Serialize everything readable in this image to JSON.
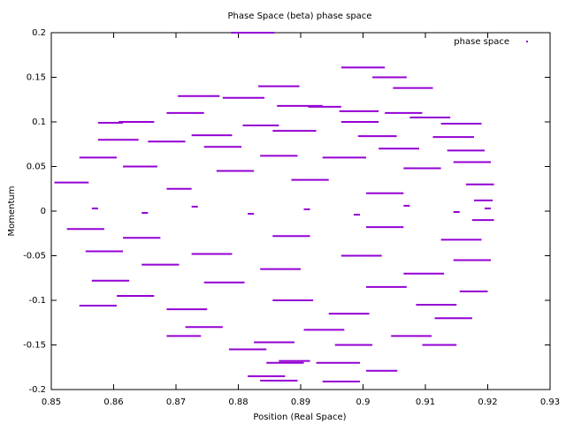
{
  "chart_data": {
    "type": "segments",
    "title": "Phase Space (beta) phase space",
    "x_label": "Position (Real Space)",
    "y_label": "Momentum",
    "xlim": [
      0.85,
      0.93
    ],
    "xticks": [
      0.85,
      0.86,
      0.87,
      0.88,
      0.89,
      0.9,
      0.91,
      0.92,
      0.93
    ],
    "ylim": [
      -0.2,
      0.2
    ],
    "yticks": [
      -0.2,
      -0.15,
      -0.1,
      -0.05,
      0,
      0.05,
      0.1,
      0.15,
      0.2
    ],
    "legend": "top-right",
    "series": [
      {
        "name": "phase space",
        "color": "#9400d3",
        "x": [
          0.8788,
          0.8965,
          0.9015,
          0.8832,
          0.9048,
          0.8703,
          0.8775,
          0.8862,
          0.8912,
          0.8962,
          0.9035,
          0.8685,
          0.9075,
          0.8575,
          0.8608,
          0.8965,
          0.9125,
          0.8807,
          0.8855,
          0.8575,
          0.8725,
          0.8992,
          0.9112,
          0.8655,
          0.8745,
          0.9025,
          0.9135,
          0.8545,
          0.8835,
          0.8935,
          0.9145,
          0.8615,
          0.8765,
          0.9065,
          0.8505,
          0.8885,
          0.9165,
          0.8685,
          0.9005,
          0.9178,
          0.8565,
          0.8645,
          0.8725,
          0.8815,
          0.8905,
          0.8985,
          0.9065,
          0.9145,
          0.9195,
          0.8525,
          0.9005,
          0.9175,
          0.8615,
          0.8855,
          0.9125,
          0.8555,
          0.8725,
          0.8965,
          0.9145,
          0.8645,
          0.8835,
          0.9065,
          0.8565,
          0.8745,
          0.9005,
          0.9155,
          0.8605,
          0.8855,
          0.9085,
          0.8545,
          0.8685,
          0.8945,
          0.9115,
          0.8715,
          0.8905,
          0.8685,
          0.9045,
          0.8825,
          0.8955,
          0.9095,
          0.8785,
          0.8845,
          0.8865,
          0.8925,
          0.8815,
          0.8835,
          0.9005,
          0.8935
        ],
        "x_end": [
          0.8858,
          0.9035,
          0.907,
          0.8898,
          0.9112,
          0.877,
          0.8842,
          0.8935,
          0.8965,
          0.9025,
          0.9095,
          0.8745,
          0.914,
          0.8615,
          0.8665,
          0.9025,
          0.919,
          0.8865,
          0.8925,
          0.864,
          0.879,
          0.9054,
          0.9178,
          0.8715,
          0.8805,
          0.909,
          0.9195,
          0.8605,
          0.8895,
          0.9005,
          0.9205,
          0.867,
          0.8825,
          0.9125,
          0.856,
          0.8945,
          0.921,
          0.8725,
          0.9065,
          0.9208,
          0.8575,
          0.8655,
          0.8735,
          0.8825,
          0.8915,
          0.8995,
          0.9075,
          0.9155,
          0.9205,
          0.8585,
          0.9065,
          0.921,
          0.8675,
          0.8915,
          0.919,
          0.8615,
          0.879,
          0.903,
          0.9205,
          0.8705,
          0.89,
          0.913,
          0.8625,
          0.881,
          0.907,
          0.92,
          0.8665,
          0.892,
          0.915,
          0.8605,
          0.875,
          0.901,
          0.9175,
          0.8775,
          0.897,
          0.874,
          0.911,
          0.889,
          0.9015,
          0.915,
          0.8845,
          0.8905,
          0.8915,
          0.8995,
          0.8875,
          0.8895,
          0.9055,
          0.8995
        ],
        "values": [
          0.2,
          0.161,
          0.15,
          0.14,
          0.138,
          0.129,
          0.127,
          0.118,
          0.117,
          0.112,
          0.11,
          0.11,
          0.105,
          0.099,
          0.1,
          0.1,
          0.098,
          0.096,
          0.09,
          0.08,
          0.085,
          0.084,
          0.083,
          0.078,
          0.072,
          0.07,
          0.068,
          0.06,
          0.062,
          0.06,
          0.055,
          0.05,
          0.045,
          0.048,
          0.032,
          0.035,
          0.03,
          0.025,
          0.02,
          0.012,
          0.003,
          -0.002,
          0.005,
          -0.003,
          0.002,
          -0.004,
          0.006,
          -0.001,
          0.003,
          -0.02,
          -0.018,
          -0.01,
          -0.03,
          -0.028,
          -0.032,
          -0.045,
          -0.048,
          -0.05,
          -0.055,
          -0.06,
          -0.065,
          -0.07,
          -0.078,
          -0.08,
          -0.085,
          -0.09,
          -0.095,
          -0.1,
          -0.105,
          -0.106,
          -0.11,
          -0.115,
          -0.12,
          -0.13,
          -0.133,
          -0.14,
          -0.14,
          -0.147,
          -0.15,
          -0.15,
          -0.155,
          -0.17,
          -0.168,
          -0.17,
          -0.185,
          -0.19,
          -0.179,
          -0.191
        ]
      }
    ]
  }
}
